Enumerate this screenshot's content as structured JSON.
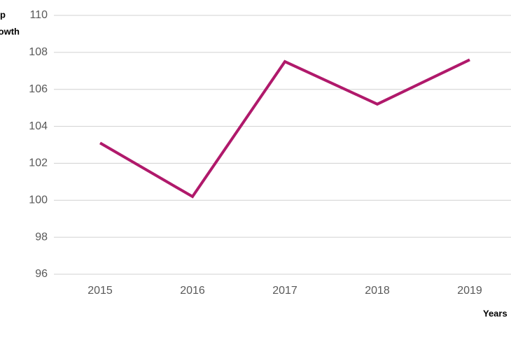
{
  "chart_data": {
    "type": "line",
    "ylabel_lines": [
      "p",
      "owth"
    ],
    "xlabel": "Years",
    "categories": [
      "2015",
      "2016",
      "2017",
      "2018",
      "2019"
    ],
    "series": [
      {
        "color": "#b0196b",
        "values": [
          103.1,
          100.2,
          107.5,
          105.2,
          107.6
        ]
      }
    ],
    "ylim": [
      96,
      110
    ],
    "yticks": [
      96,
      98,
      100,
      102,
      104,
      106,
      108,
      110
    ],
    "grid": true
  }
}
